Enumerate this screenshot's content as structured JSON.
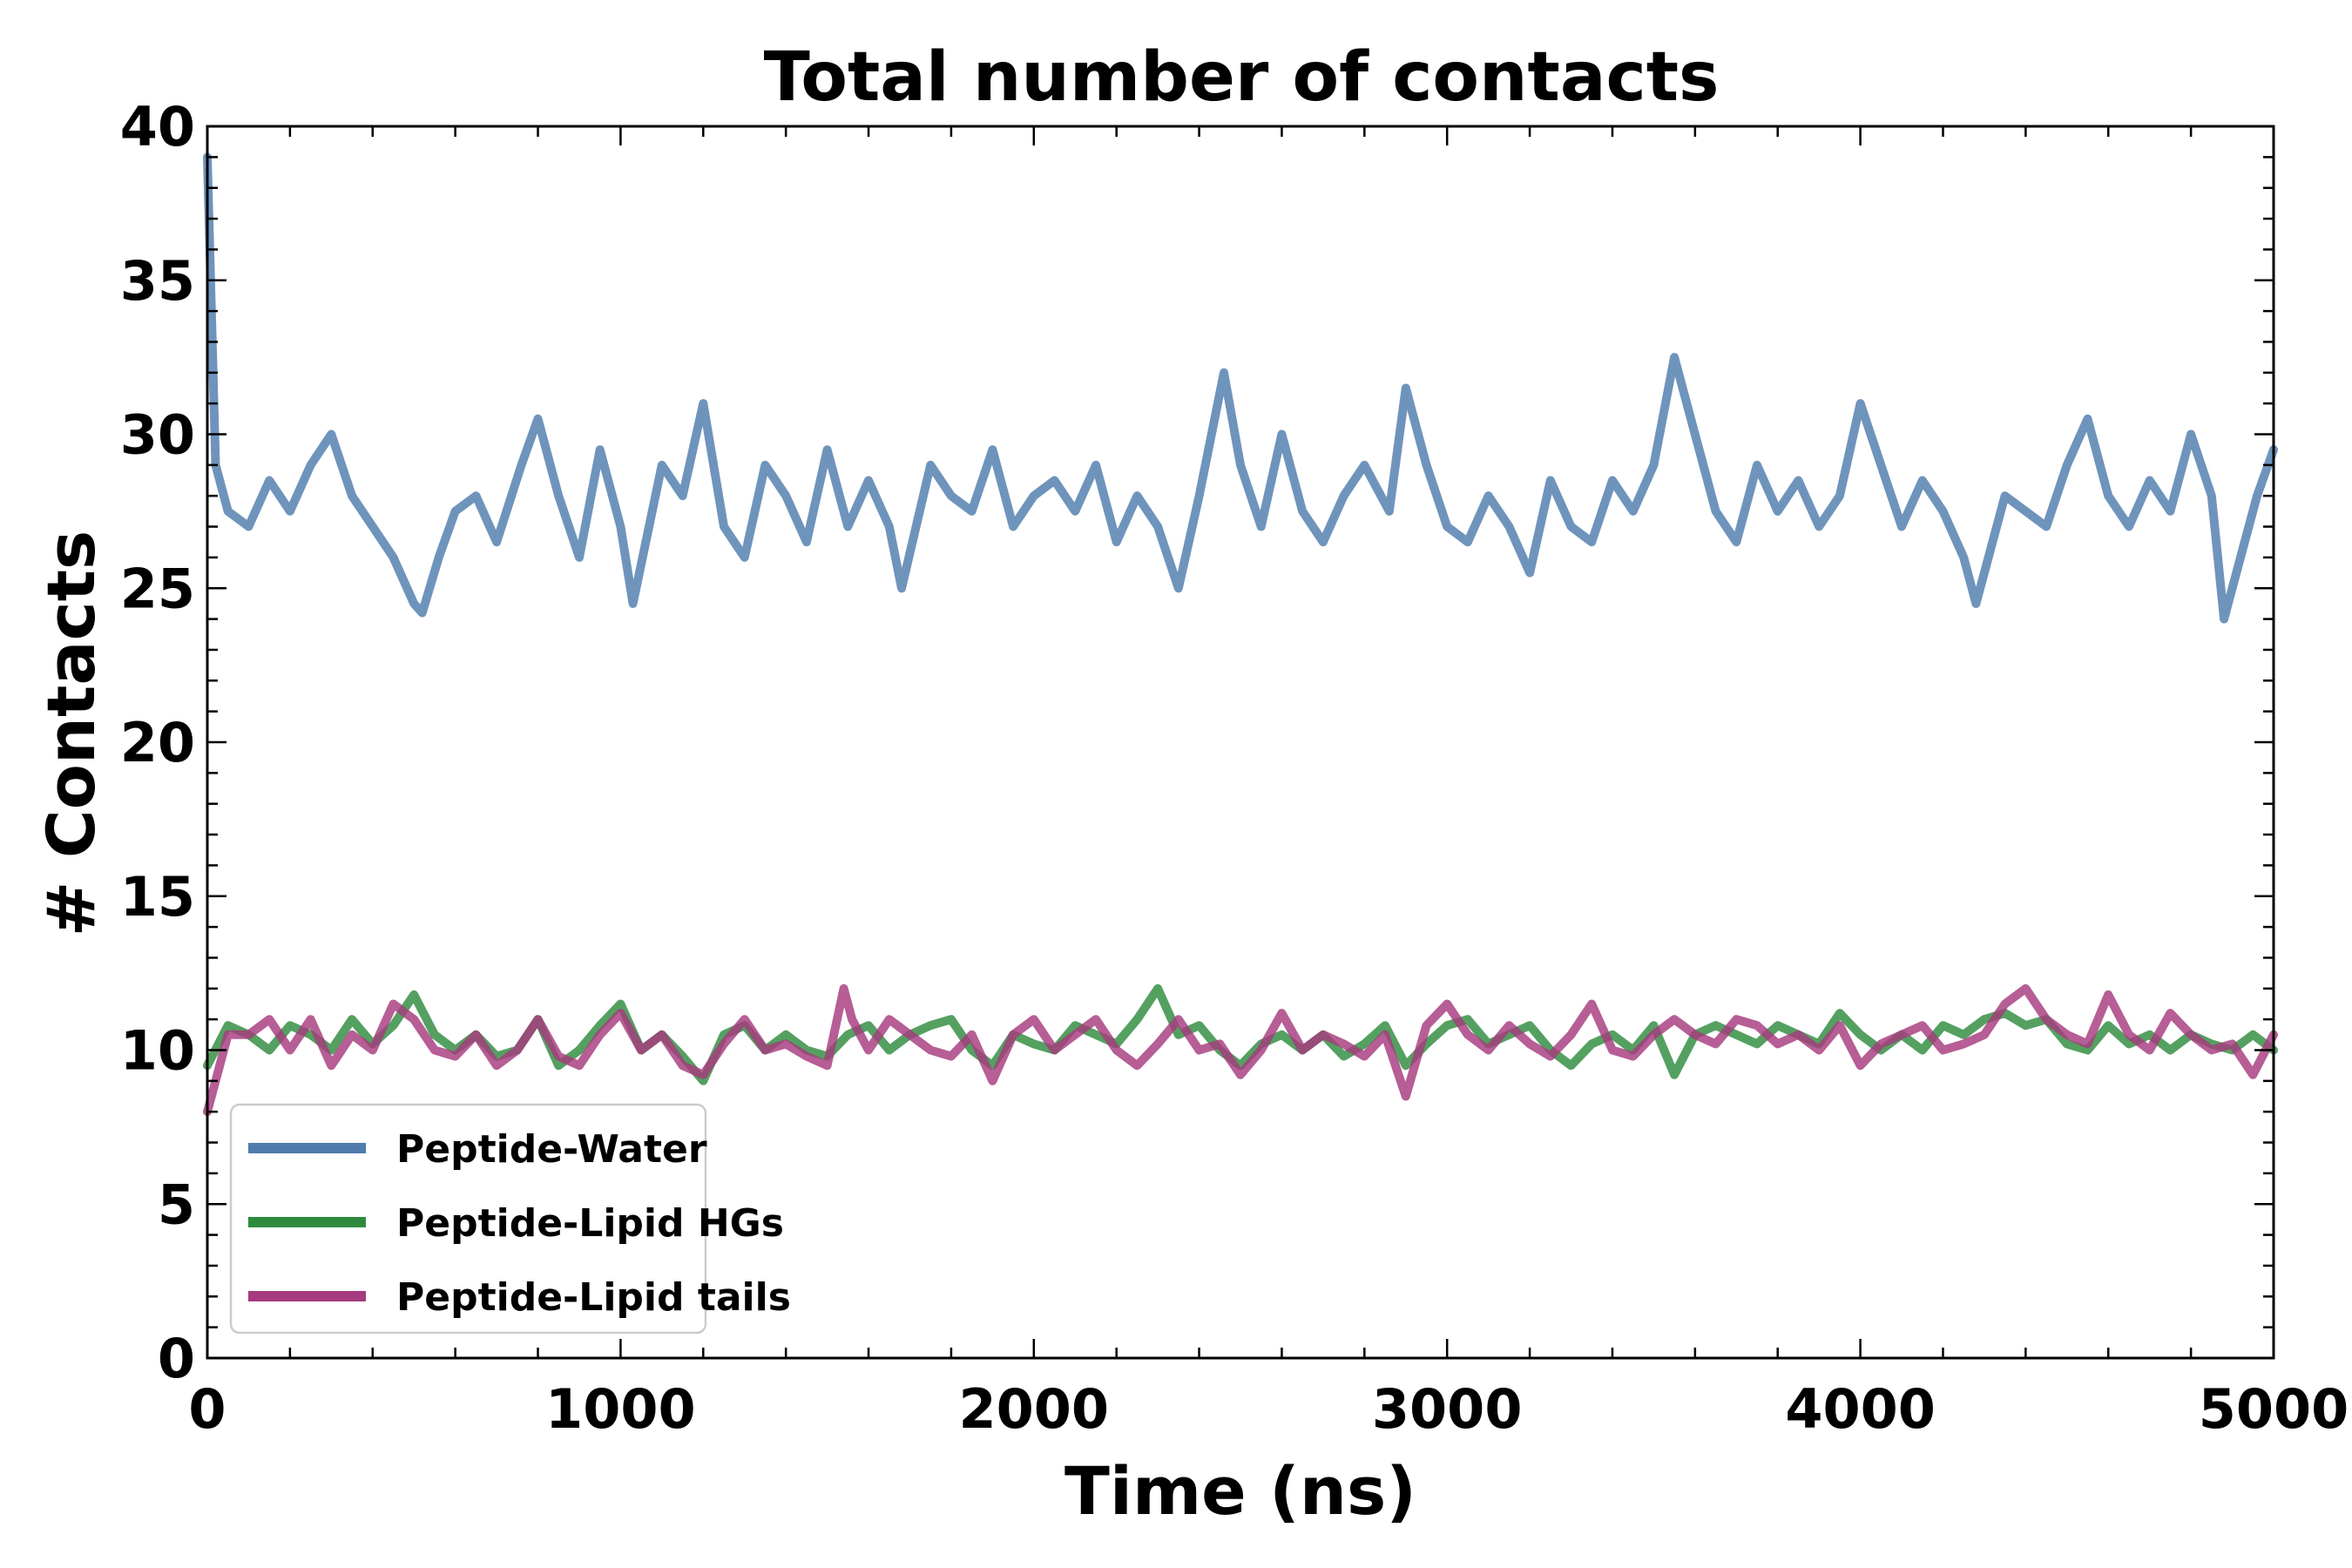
{
  "chart_data": {
    "type": "line",
    "title": "Total number of contacts",
    "xlabel": "Time (ns)",
    "ylabel": "# Contacts",
    "xlim": [
      0,
      5000
    ],
    "ylim": [
      0,
      40
    ],
    "xticks": [
      0,
      1000,
      2000,
      3000,
      4000,
      5000
    ],
    "yticks": [
      0,
      5,
      10,
      15,
      20,
      25,
      30,
      35,
      40
    ],
    "grid": false,
    "legend_position": "lower-left",
    "series": [
      {
        "name": "Peptide-Water",
        "color": "#4f7cad",
        "x": [
          0,
          20,
          50,
          100,
          150,
          200,
          250,
          300,
          350,
          400,
          450,
          500,
          520,
          560,
          600,
          650,
          700,
          760,
          800,
          850,
          900,
          950,
          1000,
          1030,
          1100,
          1150,
          1200,
          1250,
          1300,
          1350,
          1400,
          1450,
          1500,
          1550,
          1600,
          1650,
          1680,
          1750,
          1800,
          1850,
          1900,
          1950,
          2000,
          2050,
          2100,
          2150,
          2200,
          2250,
          2300,
          2350,
          2400,
          2460,
          2500,
          2550,
          2600,
          2650,
          2700,
          2750,
          2800,
          2860,
          2900,
          2950,
          3000,
          3050,
          3100,
          3150,
          3200,
          3250,
          3300,
          3350,
          3400,
          3450,
          3500,
          3550,
          3600,
          3650,
          3700,
          3750,
          3800,
          3850,
          3900,
          3950,
          4000,
          4050,
          4100,
          4150,
          4200,
          4250,
          4280,
          4350,
          4400,
          4450,
          4500,
          4550,
          4600,
          4650,
          4700,
          4750,
          4800,
          4850,
          4880,
          4920,
          4960,
          5000
        ],
        "values": [
          39,
          29,
          27.5,
          27,
          28.5,
          27.5,
          29,
          30,
          28,
          27,
          26,
          24.5,
          24.2,
          26,
          27.5,
          28,
          26.5,
          29,
          30.5,
          28,
          26,
          29.5,
          27,
          24.5,
          29,
          28,
          31,
          27,
          26,
          29,
          28,
          26.5,
          29.5,
          27,
          28.5,
          27,
          25,
          29,
          28,
          27.5,
          29.5,
          27,
          28,
          28.5,
          27.5,
          29,
          26.5,
          28,
          27,
          25,
          28,
          32,
          29,
          27,
          30,
          27.5,
          26.5,
          28,
          29,
          27.5,
          31.5,
          29,
          27,
          26.5,
          28,
          27,
          25.5,
          28.5,
          27,
          26.5,
          28.5,
          27.5,
          29,
          32.5,
          30,
          27.5,
          26.5,
          29,
          27.5,
          28.5,
          27,
          28,
          31,
          29,
          27,
          28.5,
          27.5,
          26,
          24.5,
          28,
          27.5,
          27,
          29,
          30.5,
          28,
          27,
          28.5,
          27.5,
          30,
          28,
          24,
          26,
          28,
          29.5
        ]
      },
      {
        "name": "Peptide-Lipid HGs",
        "color": "#2e8b3e",
        "x": [
          0,
          50,
          100,
          150,
          200,
          250,
          300,
          350,
          400,
          450,
          500,
          550,
          600,
          650,
          700,
          750,
          800,
          850,
          900,
          950,
          1000,
          1050,
          1100,
          1150,
          1200,
          1250,
          1300,
          1350,
          1400,
          1450,
          1500,
          1550,
          1600,
          1650,
          1700,
          1750,
          1800,
          1850,
          1900,
          1950,
          2000,
          2050,
          2100,
          2150,
          2200,
          2250,
          2300,
          2350,
          2400,
          2450,
          2500,
          2550,
          2600,
          2650,
          2700,
          2750,
          2800,
          2850,
          2900,
          2950,
          3000,
          3050,
          3100,
          3150,
          3200,
          3250,
          3300,
          3350,
          3400,
          3450,
          3500,
          3550,
          3600,
          3650,
          3700,
          3750,
          3800,
          3850,
          3900,
          3950,
          4000,
          4050,
          4100,
          4150,
          4200,
          4250,
          4300,
          4350,
          4400,
          4450,
          4500,
          4550,
          4600,
          4650,
          4700,
          4750,
          4800,
          4850,
          4900,
          4950,
          5000
        ],
        "values": [
          9.5,
          10.8,
          10.5,
          10,
          10.8,
          10.5,
          10,
          11,
          10.2,
          10.8,
          11.8,
          10.5,
          10,
          10.5,
          9.8,
          10,
          11,
          9.5,
          10,
          10.8,
          11.5,
          10,
          10.5,
          9.8,
          9,
          10.5,
          10.8,
          10,
          10.5,
          10,
          9.8,
          10.5,
          10.8,
          10,
          10.5,
          10.8,
          11,
          10,
          9.5,
          10.5,
          10.2,
          10,
          10.8,
          10.5,
          10.2,
          11,
          12,
          10.5,
          10.8,
          10,
          9.5,
          10.2,
          10.5,
          10,
          10.5,
          9.8,
          10.2,
          10.8,
          9.5,
          10.2,
          10.8,
          11,
          10.2,
          10.5,
          10.8,
          10,
          9.5,
          10.2,
          10.5,
          10,
          10.8,
          9.2,
          10.5,
          10.8,
          10.5,
          10.2,
          10.8,
          10.5,
          10.2,
          11.2,
          10.5,
          10,
          10.5,
          10,
          10.8,
          10.5,
          11,
          11.2,
          10.8,
          11,
          10.2,
          10,
          10.8,
          10.2,
          10.5,
          10,
          10.5,
          10.2,
          10,
          10.5,
          10
        ]
      },
      {
        "name": "Peptide-Lipid tails",
        "color": "#a63a7e",
        "x": [
          0,
          50,
          100,
          150,
          200,
          250,
          300,
          350,
          400,
          450,
          500,
          550,
          600,
          650,
          700,
          750,
          800,
          850,
          900,
          950,
          1000,
          1050,
          1100,
          1150,
          1200,
          1250,
          1300,
          1350,
          1400,
          1450,
          1500,
          1540,
          1560,
          1600,
          1650,
          1700,
          1750,
          1800,
          1850,
          1900,
          1950,
          2000,
          2050,
          2100,
          2150,
          2200,
          2250,
          2300,
          2350,
          2400,
          2450,
          2500,
          2550,
          2600,
          2650,
          2700,
          2750,
          2800,
          2850,
          2900,
          2950,
          3000,
          3050,
          3100,
          3150,
          3200,
          3250,
          3300,
          3350,
          3400,
          3450,
          3500,
          3550,
          3600,
          3650,
          3700,
          3750,
          3800,
          3850,
          3900,
          3950,
          4000,
          4050,
          4100,
          4150,
          4200,
          4250,
          4300,
          4350,
          4400,
          4450,
          4500,
          4550,
          4600,
          4650,
          4700,
          4750,
          4800,
          4850,
          4900,
          4950,
          5000
        ],
        "values": [
          8,
          10.5,
          10.5,
          11,
          10,
          11,
          9.5,
          10.5,
          10,
          11.5,
          11,
          10,
          9.8,
          10.5,
          9.5,
          10,
          11,
          9.8,
          9.5,
          10.5,
          11.2,
          10,
          10.5,
          9.5,
          9.2,
          10.2,
          11,
          10,
          10.2,
          9.8,
          9.5,
          12,
          11,
          10,
          11,
          10.5,
          10,
          9.8,
          10.5,
          9,
          10.5,
          11,
          10,
          10.5,
          11,
          10,
          9.5,
          10.2,
          11,
          10,
          10.2,
          9.2,
          10,
          11.2,
          10,
          10.5,
          10.2,
          9.8,
          10.5,
          8.5,
          10.8,
          11.5,
          10.5,
          10,
          10.8,
          10.2,
          9.8,
          10.5,
          11.5,
          10,
          9.8,
          10.5,
          11,
          10.5,
          10.2,
          11,
          10.8,
          10.2,
          10.5,
          10,
          10.8,
          9.5,
          10.2,
          10.5,
          10.8,
          10,
          10.2,
          10.5,
          11.5,
          12,
          11,
          10.5,
          10.2,
          11.8,
          10.5,
          10,
          11.2,
          10.5,
          10,
          10.2,
          9.2,
          10.5
        ]
      }
    ]
  }
}
